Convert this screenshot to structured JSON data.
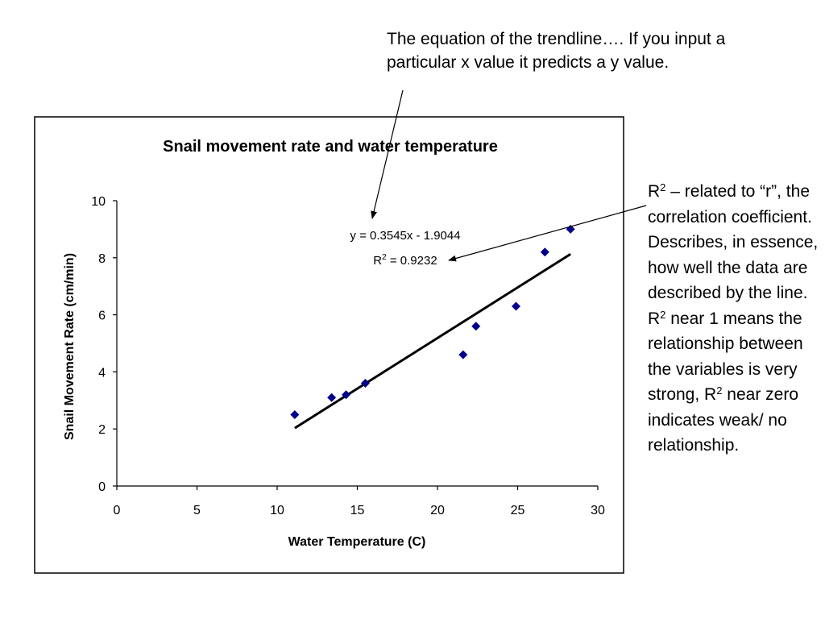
{
  "annotations": {
    "top_note": "The equation of the trendline…. If you input a particular x value it predicts a y value.",
    "r2_note": {
      "r_letter": "R",
      "sup": "2",
      "part1": " – related to “r”, the correlation coefficient. Describes, in essence, how well the data are described by the line. R",
      "part2": " near 1 means the relationship between the variables is very strong, R",
      "part3": " near zero indicates weak/ no relationship."
    }
  },
  "chart_data": {
    "type": "scatter",
    "title": "Snail movement rate and water temperature",
    "xlabel": "Water Temperature (C)",
    "ylabel": "Snail Movement Rate (cm/min)",
    "xlim": [
      0,
      30
    ],
    "ylim": [
      0,
      10
    ],
    "xticks": [
      "0",
      "5",
      "10",
      "15",
      "20",
      "25",
      "30"
    ],
    "yticks": [
      "0",
      "2",
      "4",
      "6",
      "8",
      "10"
    ],
    "grid": false,
    "legend": "none",
    "marker": "diamond",
    "marker_color": "#00008B",
    "points": [
      {
        "x": 11.1,
        "y": 2.5
      },
      {
        "x": 13.4,
        "y": 3.1
      },
      {
        "x": 14.3,
        "y": 3.2
      },
      {
        "x": 15.5,
        "y": 3.6
      },
      {
        "x": 21.6,
        "y": 4.6
      },
      {
        "x": 22.4,
        "y": 5.6
      },
      {
        "x": 24.9,
        "y": 6.3
      },
      {
        "x": 26.7,
        "y": 8.2
      },
      {
        "x": 28.3,
        "y": 9.0
      }
    ],
    "trendline": {
      "type": "linear",
      "slope": 0.3545,
      "intercept": -1.9044,
      "x_range": [
        11.1,
        28.3
      ],
      "equation_label": "y = 0.3545x - 1.9044",
      "r2_label": {
        "prefix": "R",
        "sup": "2",
        "suffix": " = 0.9232"
      }
    }
  }
}
